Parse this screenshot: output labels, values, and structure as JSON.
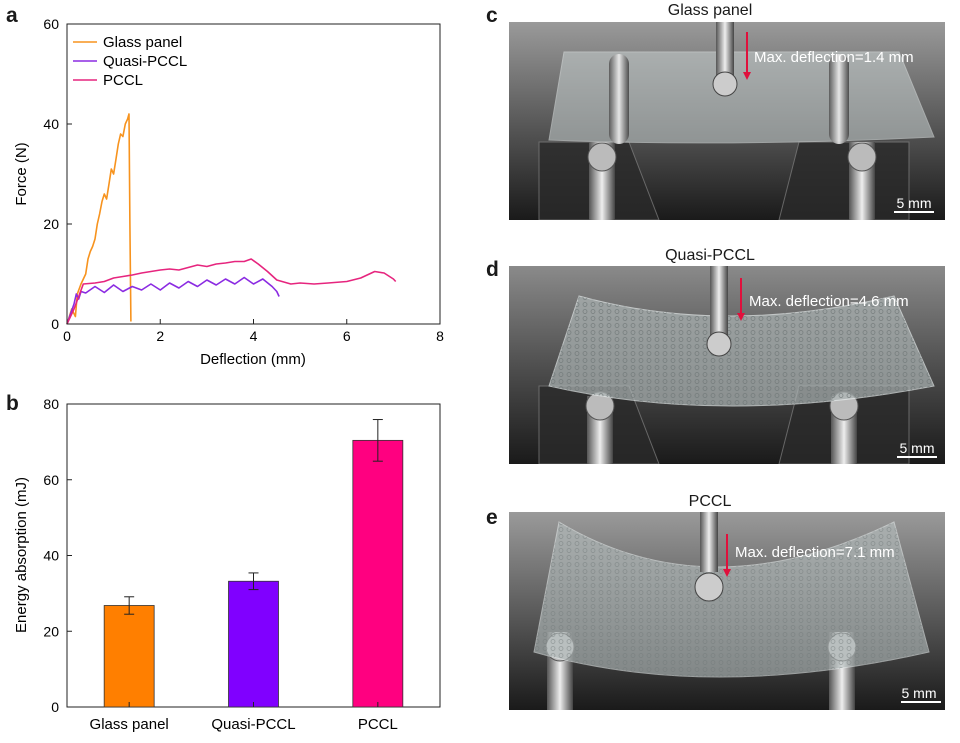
{
  "panels": {
    "a": "a",
    "b": "b",
    "c": "c",
    "d": "d",
    "e": "e"
  },
  "chart_data": [
    {
      "type": "line",
      "panel": "a",
      "title": "",
      "xlabel": "Deflection (mm)",
      "ylabel": "Force (N)",
      "xlim": [
        0,
        8
      ],
      "ylim": [
        0,
        60
      ],
      "xticks": [
        "0",
        "2",
        "4",
        "6",
        "8"
      ],
      "yticks": [
        "0",
        "20",
        "40",
        "60"
      ],
      "legend": "top-left",
      "series": [
        {
          "name": "Glass panel",
          "color": "#f7931e",
          "x": [
            0,
            0.1,
            0.18,
            0.22,
            0.3,
            0.4,
            0.45,
            0.5,
            0.55,
            0.6,
            0.65,
            0.7,
            0.75,
            0.8,
            0.85,
            0.9,
            0.95,
            1.0,
            1.05,
            1.1,
            1.15,
            1.2,
            1.25,
            1.3,
            1.33,
            1.35,
            1.37
          ],
          "y": [
            0,
            3,
            1.5,
            6,
            8,
            10,
            13,
            14.5,
            15.5,
            17,
            20,
            22,
            24.5,
            26,
            25,
            28,
            31,
            30,
            33,
            36,
            38,
            37.5,
            40,
            41,
            42,
            20,
            0.5
          ]
        },
        {
          "name": "Quasi-PCCL",
          "color": "#8b2be2",
          "x": [
            0,
            0.15,
            0.2,
            0.25,
            0.3,
            0.4,
            0.6,
            0.8,
            1.0,
            1.2,
            1.4,
            1.6,
            1.8,
            2.0,
            2.2,
            2.4,
            2.6,
            2.8,
            3.0,
            3.2,
            3.4,
            3.6,
            3.8,
            4.0,
            4.2,
            4.4,
            4.5,
            4.55
          ],
          "y": [
            0,
            4,
            6,
            5,
            6.5,
            6.2,
            7.5,
            6.3,
            7.8,
            6.5,
            7.5,
            6.8,
            8,
            6.8,
            8.2,
            7.2,
            8.5,
            7.5,
            8.8,
            7.8,
            9,
            8,
            9.3,
            8,
            9,
            7.5,
            6.5,
            5.5
          ]
        },
        {
          "name": "PCCL",
          "color": "#e6257e",
          "x": [
            0,
            0.15,
            0.25,
            0.35,
            0.6,
            0.8,
            1.0,
            1.2,
            1.4,
            1.6,
            1.8,
            2.0,
            2.2,
            2.4,
            2.6,
            2.8,
            3.0,
            3.2,
            3.4,
            3.6,
            3.8,
            3.95,
            4.1,
            4.3,
            4.5,
            4.8,
            5.0,
            5.3,
            5.6,
            6.0,
            6.3,
            6.6,
            6.8,
            7.0,
            7.05
          ],
          "y": [
            0,
            3,
            5.5,
            8,
            8.2,
            8.5,
            9.2,
            9.5,
            9.8,
            10.2,
            10.5,
            10.8,
            11,
            10.8,
            11.3,
            11.8,
            11.5,
            12,
            12.2,
            12.5,
            12.5,
            13,
            12,
            10.5,
            8.8,
            8,
            8.2,
            8,
            8.2,
            8.5,
            9.2,
            10.5,
            10.2,
            9,
            8.5
          ]
        }
      ]
    },
    {
      "type": "bar",
      "panel": "b",
      "title": "",
      "xlabel": "",
      "ylabel": "Energy absorption (mJ)",
      "categories": [
        "Glass panel",
        "Quasi-PCCL",
        "PCCL"
      ],
      "values": [
        26.8,
        33.2,
        70.4
      ],
      "errors": [
        2.3,
        2.2,
        5.5
      ],
      "colors": [
        "#ff7f00",
        "#8000ff",
        "#ff0080"
      ],
      "ylim": [
        0,
        80
      ],
      "yticks": [
        "0",
        "20",
        "40",
        "60",
        "80"
      ]
    }
  ],
  "photos": [
    {
      "panel": "c",
      "title": "Glass panel",
      "annotation": "Max. deflection=1.4 mm",
      "scale_bar": "5 mm"
    },
    {
      "panel": "d",
      "title": "Quasi-PCCL",
      "annotation": "Max. deflection=4.6 mm",
      "scale_bar": "5 mm"
    },
    {
      "panel": "e",
      "title": "PCCL",
      "annotation": "Max. deflection=7.1 mm",
      "scale_bar": "5 mm"
    }
  ]
}
